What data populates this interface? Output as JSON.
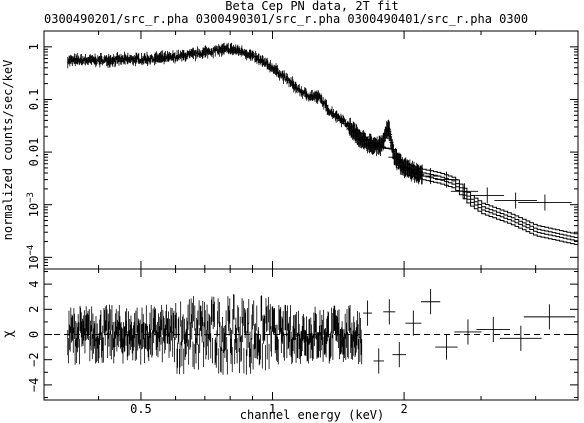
{
  "chart_data": [
    {
      "type": "scatter",
      "title": "Beta Cep PN data, 2T fit",
      "subtitle": "0300490201/src_r.pha  0300490301/src_r.pha  0300490401/src_r.pha  0300",
      "xlabel": "",
      "ylabel": "normalized counts/sec/keV",
      "xscale": "log",
      "yscale": "log",
      "xlim": [
        0.3,
        5.0
      ],
      "ylim": [
        6e-05,
        2.0
      ],
      "yticks": [
        {
          "value": 0.0001,
          "mant": "10",
          "exp": "−4"
        },
        {
          "value": 0.001,
          "mant": "10",
          "exp": "−3"
        },
        {
          "value": 0.01,
          "label": "0.01"
        },
        {
          "value": 0.1,
          "label": "0.1"
        },
        {
          "value": 1,
          "label": "1"
        }
      ],
      "grid": false,
      "series": [
        {
          "role": "data with error bars",
          "x": [
            0.35,
            0.42,
            0.5,
            0.58,
            0.66,
            0.74,
            0.8,
            0.86,
            0.92,
            1.0,
            1.08,
            1.15,
            1.2,
            1.28,
            1.35,
            1.45,
            1.55,
            1.62,
            1.7,
            1.78,
            1.84,
            1.9,
            2.0,
            2.15,
            2.3,
            2.5,
            2.75,
            3.1,
            3.6,
            4.2
          ],
          "y": [
            0.55,
            0.56,
            0.58,
            0.62,
            0.72,
            0.85,
            0.9,
            0.8,
            0.6,
            0.4,
            0.24,
            0.15,
            0.12,
            0.11,
            0.06,
            0.04,
            0.022,
            0.016,
            0.013,
            0.014,
            0.03,
            0.008,
            0.005,
            0.004,
            0.0035,
            0.003,
            0.0018,
            0.0015,
            0.0012,
            0.0011
          ]
        },
        {
          "role": "model",
          "x": [
            0.3,
            0.4,
            0.5,
            0.6,
            0.7,
            0.8,
            0.9,
            1.0,
            1.1,
            1.2,
            1.3,
            1.4,
            1.5,
            1.6,
            1.7,
            1.8,
            1.9,
            2.0,
            2.2,
            2.4,
            2.6,
            2.8,
            3.0,
            3.5,
            4.0,
            5.0
          ],
          "y": [
            0.52,
            0.55,
            0.58,
            0.65,
            0.75,
            0.85,
            0.75,
            0.45,
            0.25,
            0.15,
            0.11,
            0.07,
            0.035,
            0.02,
            0.014,
            0.012,
            0.011,
            0.0045,
            0.0035,
            0.003,
            0.0024,
            0.0012,
            0.0008,
            0.0005,
            0.0003,
            0.0002
          ]
        }
      ]
    },
    {
      "type": "scatter",
      "xlabel": "channel energy (keV)",
      "ylabel": "χ",
      "xscale": "log",
      "xlim": [
        0.3,
        5.0
      ],
      "ylim": [
        -5.2,
        5.2
      ],
      "xticks": [
        {
          "value": 0.5,
          "label": "0.5"
        },
        {
          "value": 1,
          "label": "1"
        },
        {
          "value": 2,
          "label": "2"
        }
      ],
      "yticks": [
        {
          "value": -4,
          "label": "−4"
        },
        {
          "value": -2,
          "label": "−2"
        },
        {
          "value": 0,
          "label": "0"
        },
        {
          "value": 2,
          "label": "2"
        },
        {
          "value": 4,
          "label": "4"
        }
      ],
      "reference_line": 0,
      "series": [
        {
          "role": "residuals",
          "x": [
            0.34,
            0.38,
            0.42,
            0.47,
            0.52,
            0.58,
            0.64,
            0.7,
            0.75,
            0.8,
            0.86,
            0.92,
            1.0,
            1.08,
            1.16,
            1.25,
            1.35,
            1.45,
            1.55,
            1.65,
            1.75,
            1.85,
            1.95,
            2.1,
            2.3,
            2.5,
            2.8,
            3.2,
            3.7,
            4.3
          ],
          "y": [
            -3.7,
            1.2,
            -0.8,
            2.3,
            -1.5,
            0.6,
            2.8,
            -2.1,
            1.9,
            -3.6,
            3.5,
            -1.2,
            0.4,
            1.5,
            -2.0,
            2.2,
            -1.1,
            0.8,
            -1.6,
            1.7,
            -2.1,
            1.8,
            -1.6,
            0.9,
            2.6,
            -1.0,
            0.2,
            0.4,
            -0.3,
            1.4
          ]
        }
      ]
    }
  ]
}
